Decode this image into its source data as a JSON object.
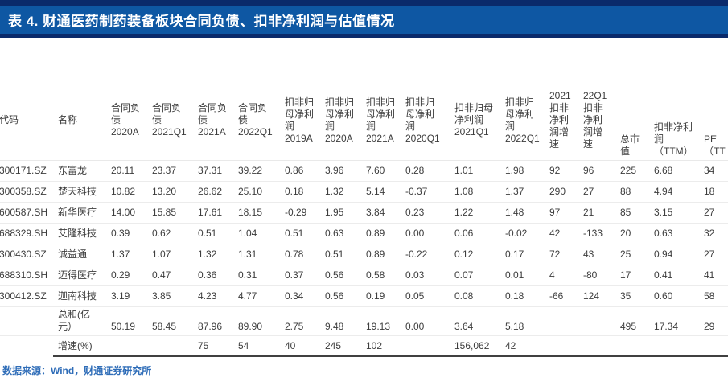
{
  "title_bar": {
    "label": "表 4.  财通医药制药装备板块合同负债、扣非净利润与估值情况"
  },
  "colors": {
    "title_bar_blue": "#0e57a3",
    "title_stripe_navy": "#0a2a6b",
    "footer_text_blue": "#2f6db8",
    "table_bottom_rule": "#404040",
    "row_separator": "#ececec"
  },
  "table": {
    "columns": [
      "代码",
      "名称",
      "合同负\n债\n2020A",
      "合同负\n债\n2021Q1",
      "合同负\n债\n2021A",
      "合同负\n债\n2022Q1",
      "扣非归\n母净利\n润\n2019A",
      "扣非归\n母净利\n润\n2020A",
      "扣非归\n母净利\n润\n2021A",
      "扣非归\n母净利\n润\n2020Q1",
      "扣非归母\n净利润\n2021Q1",
      "扣非归\n母净利\n润\n2022Q1",
      "2021\n扣非\n净利\n润增\n速",
      "22Q1\n扣非\n净利\n润增\n速",
      "总市\n值",
      "扣非净利\n润\n（TTM）",
      "PE\n（TT"
    ],
    "rows": [
      {
        "id": "row-dongfulong",
        "cells": [
          "300171.SZ",
          "东富龙",
          "20.11",
          "23.37",
          "37.31",
          "39.22",
          "0.86",
          "3.96",
          "7.60",
          "0.28",
          "1.01",
          "1.98",
          "92",
          "96",
          "225",
          "6.68",
          "34"
        ]
      },
      {
        "id": "row-chutian",
        "cells": [
          "300358.SZ",
          "楚天科技",
          "10.82",
          "13.20",
          "26.62",
          "25.10",
          "0.18",
          "1.32",
          "5.14",
          "-0.37",
          "1.08",
          "1.37",
          "290",
          "27",
          "88",
          "4.94",
          "18"
        ]
      },
      {
        "id": "row-xinhua",
        "cells": [
          "600587.SH",
          "新华医疗",
          "14.00",
          "15.85",
          "17.61",
          "18.15",
          "-0.29",
          "1.95",
          "3.84",
          "0.23",
          "1.22",
          "1.48",
          "97",
          "21",
          "85",
          "3.15",
          "27"
        ]
      },
      {
        "id": "row-ailong",
        "cells": [
          "688329.SH",
          "艾隆科技",
          "0.39",
          "0.62",
          "0.51",
          "1.04",
          "0.51",
          "0.63",
          "0.89",
          "0.00",
          "0.06",
          "-0.02",
          "42",
          "-133",
          "20",
          "0.63",
          "32"
        ]
      },
      {
        "id": "row-chengyitong",
        "cells": [
          "300430.SZ",
          "诚益通",
          "1.37",
          "1.07",
          "1.32",
          "1.31",
          "0.78",
          "0.51",
          "0.89",
          "-0.22",
          "0.12",
          "0.17",
          "72",
          "43",
          "25",
          "0.94",
          "27"
        ]
      },
      {
        "id": "row-maide",
        "cells": [
          "688310.SH",
          "迈得医疗",
          "0.29",
          "0.47",
          "0.36",
          "0.31",
          "0.37",
          "0.56",
          "0.58",
          "0.03",
          "0.07",
          "0.01",
          "4",
          "-80",
          "17",
          "0.41",
          "41"
        ]
      },
      {
        "id": "row-jianan",
        "cells": [
          "300412.SZ",
          "迦南科技",
          "3.19",
          "3.85",
          "4.23",
          "4.77",
          "0.34",
          "0.56",
          "0.19",
          "0.05",
          "0.08",
          "0.18",
          "-66",
          "124",
          "35",
          "0.60",
          "58"
        ]
      },
      {
        "id": "row-sum",
        "cells": [
          "",
          "总和(亿\n元）",
          "50.19",
          "58.45",
          "87.96",
          "89.90",
          "2.75",
          "9.48",
          "19.13",
          "0.00",
          "3.64",
          "5.18",
          "",
          "",
          "495",
          "17.34",
          "29"
        ]
      },
      {
        "id": "row-growth",
        "cells": [
          "",
          "增速(%)",
          "",
          "",
          "75",
          "54",
          "40",
          "245",
          "102",
          "",
          "156,062",
          "42",
          "",
          "",
          "",
          "",
          ""
        ]
      }
    ]
  },
  "footer": {
    "source": "数据来源：Wind，财通证券研究所"
  }
}
